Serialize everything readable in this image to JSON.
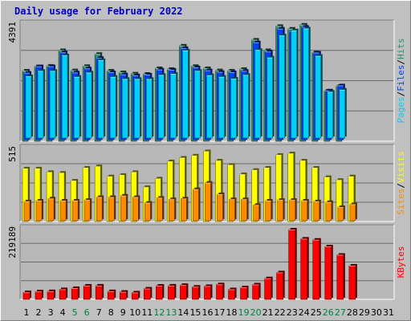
{
  "chart_title": "Daily usage for February 2022",
  "colors": {
    "background": "#c0c0c0",
    "plot_background": "#b8b8b8",
    "grid": "#6a6a6a",
    "hits": "#2f8f6f",
    "files": "#0040ff",
    "pages": "#00d0f8",
    "visits": "#ffff00",
    "sites": "#ff8c00",
    "kbytes": "#ff0000",
    "weekday_label": "#000000",
    "weekend_label": "#008040",
    "title": "#0000c0"
  },
  "chart_data": [
    {
      "type": "bar",
      "panel": "hits-files-pages",
      "categories": [
        "1",
        "2",
        "3",
        "4",
        "5",
        "6",
        "7",
        "8",
        "9",
        "10",
        "11",
        "12",
        "13",
        "14",
        "15",
        "16",
        "17",
        "18",
        "19",
        "20",
        "21",
        "22",
        "23",
        "24",
        "25",
        "26",
        "27",
        "28",
        "29",
        "30",
        "31"
      ],
      "ylim": [
        0,
        4391
      ],
      "axis_max_label": "4391",
      "series": [
        {
          "name": "Hits",
          "values": [
            2630,
            2790,
            2810,
            3390,
            2640,
            2800,
            3250,
            2630,
            2570,
            2520,
            2510,
            2720,
            2690,
            3560,
            2800,
            2720,
            2640,
            2630,
            2690,
            3780,
            3390,
            4290,
            4190,
            4340,
            3310,
            1880,
            2060,
            null,
            null,
            null,
            null
          ]
        },
        {
          "name": "Files",
          "values": [
            2490,
            2730,
            2730,
            3250,
            2500,
            2650,
            3040,
            2510,
            2430,
            2390,
            2420,
            2610,
            2600,
            3410,
            2690,
            2580,
            2520,
            2510,
            2560,
            3620,
            3280,
            4130,
            4030,
            4200,
            3240,
            1830,
            2020,
            null,
            null,
            null,
            null
          ]
        },
        {
          "name": "Pages",
          "values": [
            2300,
            2500,
            2500,
            3080,
            2280,
            2440,
            2900,
            2280,
            2200,
            2200,
            2200,
            2350,
            2390,
            3260,
            2500,
            2340,
            2280,
            2210,
            2350,
            3280,
            3000,
            3820,
            4010,
            4080,
            3060,
            1720,
            1800,
            null,
            null,
            null,
            null
          ]
        }
      ],
      "legend": [
        "Pages",
        "Files",
        "Hits"
      ],
      "legend_position": "right"
    },
    {
      "type": "bar",
      "panel": "visits-sites",
      "categories": [
        "1",
        "2",
        "3",
        "4",
        "5",
        "6",
        "7",
        "8",
        "9",
        "10",
        "11",
        "12",
        "13",
        "14",
        "15",
        "16",
        "17",
        "18",
        "19",
        "20",
        "21",
        "22",
        "23",
        "24",
        "25",
        "26",
        "27",
        "28",
        "29",
        "30",
        "31"
      ],
      "ylim": [
        0,
        515
      ],
      "axis_max_label": "515",
      "series": [
        {
          "name": "Visits",
          "values": [
            370,
            370,
            345,
            340,
            285,
            375,
            385,
            315,
            325,
            345,
            240,
            300,
            420,
            445,
            460,
            490,
            425,
            395,
            330,
            360,
            375,
            465,
            475,
            425,
            375,
            310,
            290,
            315,
            null,
            null,
            null
          ]
        },
        {
          "name": "Sites",
          "values": [
            135,
            140,
            155,
            140,
            140,
            145,
            165,
            165,
            175,
            165,
            125,
            160,
            150,
            155,
            220,
            265,
            185,
            150,
            150,
            110,
            140,
            145,
            145,
            140,
            135,
            130,
            95,
            115,
            null,
            null,
            null
          ]
        }
      ],
      "legend": [
        "Sites",
        "Visits"
      ],
      "legend_position": "right"
    },
    {
      "type": "bar",
      "panel": "kbytes",
      "categories": [
        "1",
        "2",
        "3",
        "4",
        "5",
        "6",
        "7",
        "8",
        "9",
        "10",
        "11",
        "12",
        "13",
        "14",
        "15",
        "16",
        "17",
        "18",
        "19",
        "20",
        "21",
        "22",
        "23",
        "24",
        "25",
        "26",
        "27",
        "28",
        "29",
        "30",
        "31"
      ],
      "ylim": [
        0,
        219189
      ],
      "axis_max_label": "219189",
      "series": [
        {
          "name": "KBytes",
          "values": [
            22400,
            24800,
            25500,
            31800,
            35300,
            43000,
            43100,
            25500,
            23600,
            21500,
            33800,
            42800,
            43100,
            45000,
            39600,
            41700,
            47100,
            31600,
            37600,
            46700,
            66100,
            84600,
            219189,
            190500,
            187100,
            166100,
            139900,
            105800,
            null,
            null,
            null
          ]
        }
      ],
      "legend": [
        "KBytes"
      ],
      "legend_position": "right"
    }
  ],
  "x_labels": [
    {
      "text": "1",
      "weekend": false
    },
    {
      "text": "2",
      "weekend": false
    },
    {
      "text": "3",
      "weekend": false
    },
    {
      "text": "4",
      "weekend": false
    },
    {
      "text": "5",
      "weekend": true
    },
    {
      "text": "6",
      "weekend": true
    },
    {
      "text": "7",
      "weekend": false
    },
    {
      "text": "8",
      "weekend": false
    },
    {
      "text": "9",
      "weekend": false
    },
    {
      "text": "10",
      "weekend": false
    },
    {
      "text": "11",
      "weekend": false
    },
    {
      "text": "12",
      "weekend": true
    },
    {
      "text": "13",
      "weekend": true
    },
    {
      "text": "14",
      "weekend": false
    },
    {
      "text": "15",
      "weekend": false
    },
    {
      "text": "16",
      "weekend": false
    },
    {
      "text": "17",
      "weekend": false
    },
    {
      "text": "18",
      "weekend": false
    },
    {
      "text": "19",
      "weekend": true
    },
    {
      "text": "20",
      "weekend": true
    },
    {
      "text": "21",
      "weekend": false
    },
    {
      "text": "22",
      "weekend": false
    },
    {
      "text": "23",
      "weekend": false
    },
    {
      "text": "24",
      "weekend": false
    },
    {
      "text": "25",
      "weekend": false
    },
    {
      "text": "26",
      "weekend": true
    },
    {
      "text": "27",
      "weekend": true
    },
    {
      "text": "28",
      "weekend": false
    },
    {
      "text": "29",
      "weekend": false
    },
    {
      "text": "30",
      "weekend": false
    },
    {
      "text": "31",
      "weekend": false
    }
  ]
}
